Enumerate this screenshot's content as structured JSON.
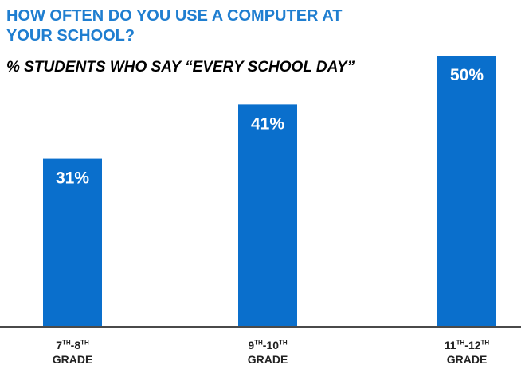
{
  "header": {
    "title_line1": "HOW OFTEN DO YOU USE A COMPUTER AT",
    "title_line2": "YOUR SCHOOL?",
    "subtitle": "% STUDENTS WHO SAY “EVERY SCHOOL DAY”"
  },
  "colors": {
    "title": "#1f7ed0",
    "bar": "#0a6fcc",
    "bar_label": "#ffffff"
  },
  "chart_data": {
    "type": "bar",
    "title": "HOW OFTEN DO YOU USE A COMPUTER AT YOUR SCHOOL?",
    "subtitle": "% STUDENTS WHO SAY “EVERY SCHOOL DAY”",
    "categories": [
      "7TH-8TH GRADE",
      "9TH-10TH GRADE",
      "11TH-12TH GRADE"
    ],
    "category_parts": [
      {
        "a": "7",
        "a_sup": "TH",
        "b": "-8",
        "b_sup": "TH",
        "line2": "GRADE"
      },
      {
        "a": "9",
        "a_sup": "TH",
        "b": "-10",
        "b_sup": "TH",
        "line2": "GRADE"
      },
      {
        "a": "11",
        "a_sup": "TH",
        "b": "-12",
        "b_sup": "TH",
        "line2": "GRADE"
      }
    ],
    "values": [
      31,
      41,
      50
    ],
    "data_labels": [
      "31%",
      "41%",
      "50%"
    ],
    "unit": "%",
    "ylim": [
      0,
      50
    ],
    "grid": false,
    "legend": "none"
  }
}
